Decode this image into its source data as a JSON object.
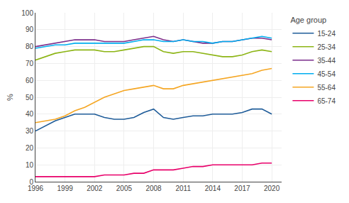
{
  "chart_data": {
    "type": "line",
    "ylabel": "%",
    "legend_title": "Age group",
    "x": [
      1996,
      1997,
      1998,
      1999,
      2000,
      2001,
      2002,
      2003,
      2004,
      2005,
      2006,
      2007,
      2008,
      2009,
      2010,
      2011,
      2012,
      2013,
      2014,
      2015,
      2016,
      2017,
      2018,
      2019,
      2020
    ],
    "series": [
      {
        "name": "15-24",
        "color": "#1F5C99",
        "values": [
          30,
          33,
          36,
          38,
          40,
          40,
          40,
          38,
          37,
          37,
          38,
          41,
          43,
          38,
          37,
          38,
          39,
          39,
          40,
          40,
          40,
          41,
          43,
          43,
          40
        ]
      },
      {
        "name": "25-34",
        "color": "#8DB516",
        "values": [
          72,
          74,
          76,
          77,
          78,
          78,
          78,
          77,
          77,
          78,
          79,
          80,
          80,
          77,
          76,
          77,
          77,
          76,
          75,
          74,
          74,
          75,
          77,
          78,
          77
        ]
      },
      {
        "name": "35-44",
        "color": "#7B2D8B",
        "values": [
          80,
          81,
          82,
          83,
          84,
          84,
          84,
          83,
          83,
          83,
          84,
          85,
          86,
          84,
          83,
          84,
          83,
          82,
          82,
          83,
          83,
          84,
          85,
          85,
          84
        ]
      },
      {
        "name": "45-54",
        "color": "#00AEEF",
        "values": [
          79,
          80,
          81,
          81,
          82,
          82,
          82,
          82,
          82,
          82,
          83,
          84,
          84,
          83,
          83,
          84,
          83,
          83,
          82,
          83,
          83,
          84,
          85,
          86,
          85
        ]
      },
      {
        "name": "55-64",
        "color": "#F5A623",
        "values": [
          35,
          36,
          37,
          39,
          42,
          44,
          47,
          50,
          52,
          54,
          55,
          56,
          57,
          55,
          55,
          57,
          58,
          59,
          60,
          61,
          62,
          63,
          64,
          66,
          67
        ]
      },
      {
        "name": "65-74",
        "color": "#E8006A",
        "values": [
          3,
          3,
          3,
          3,
          3,
          3,
          3,
          4,
          4,
          4,
          5,
          5,
          7,
          7,
          7,
          8,
          9,
          9,
          10,
          10,
          10,
          10,
          10,
          11,
          11
        ]
      }
    ],
    "xlim": [
      1996,
      2021
    ],
    "xticks": [
      1996,
      1999,
      2002,
      2005,
      2008,
      2011,
      2014,
      2017,
      2020
    ],
    "ylim": [
      0,
      100
    ],
    "yticks": [
      0,
      10,
      20,
      30,
      40,
      50,
      60,
      70,
      80,
      90,
      100
    ],
    "grid": true,
    "legend": "right"
  }
}
